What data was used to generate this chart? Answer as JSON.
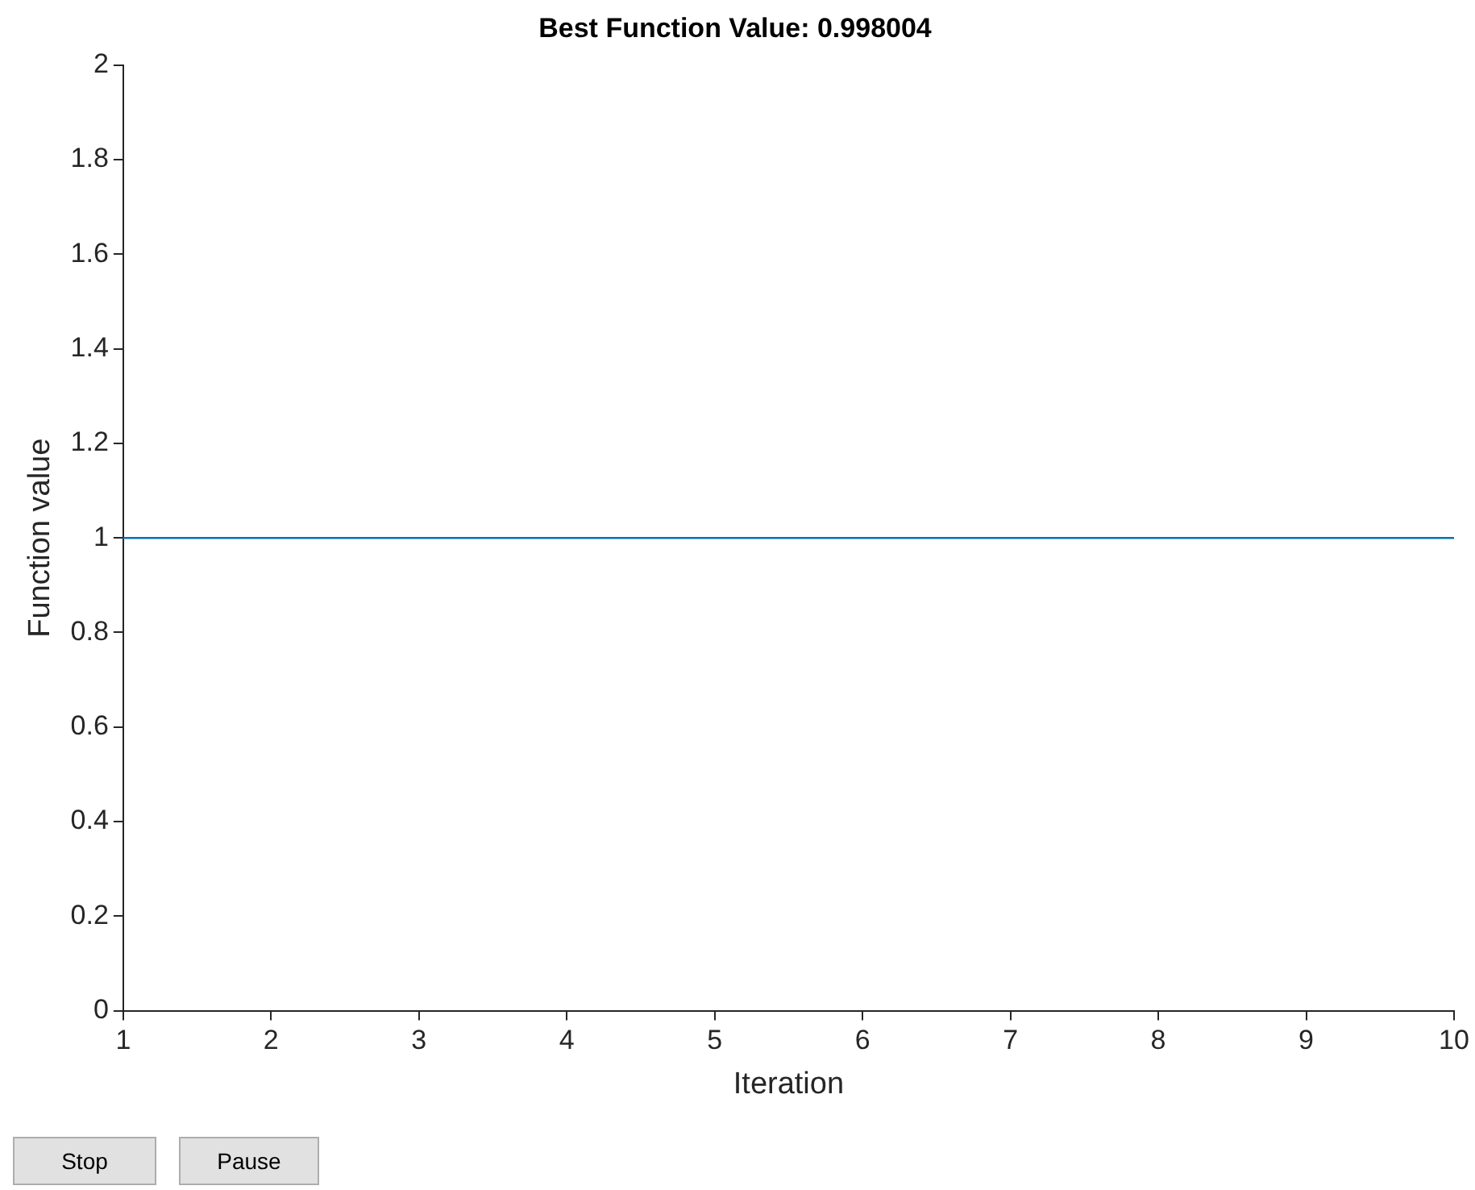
{
  "chart_data": {
    "type": "line",
    "title": "Best Function Value: 0.998004",
    "xlabel": "Iteration",
    "ylabel": "Function value",
    "x": [
      1,
      10
    ],
    "series": [
      {
        "color": "#0072bd",
        "values": [
          1,
          1
        ]
      }
    ],
    "xlim": [
      1,
      10
    ],
    "xticks": [
      1,
      2,
      3,
      4,
      5,
      6,
      7,
      8,
      9,
      10
    ],
    "ylim": [
      0,
      2
    ],
    "yticks": [
      0,
      0.2,
      0.4,
      0.6,
      0.8,
      1,
      1.2,
      1.4,
      1.6,
      1.8,
      2
    ],
    "marker": "none",
    "line_style": "solid",
    "annotations": [
      "Stop",
      "Pause"
    ]
  }
}
